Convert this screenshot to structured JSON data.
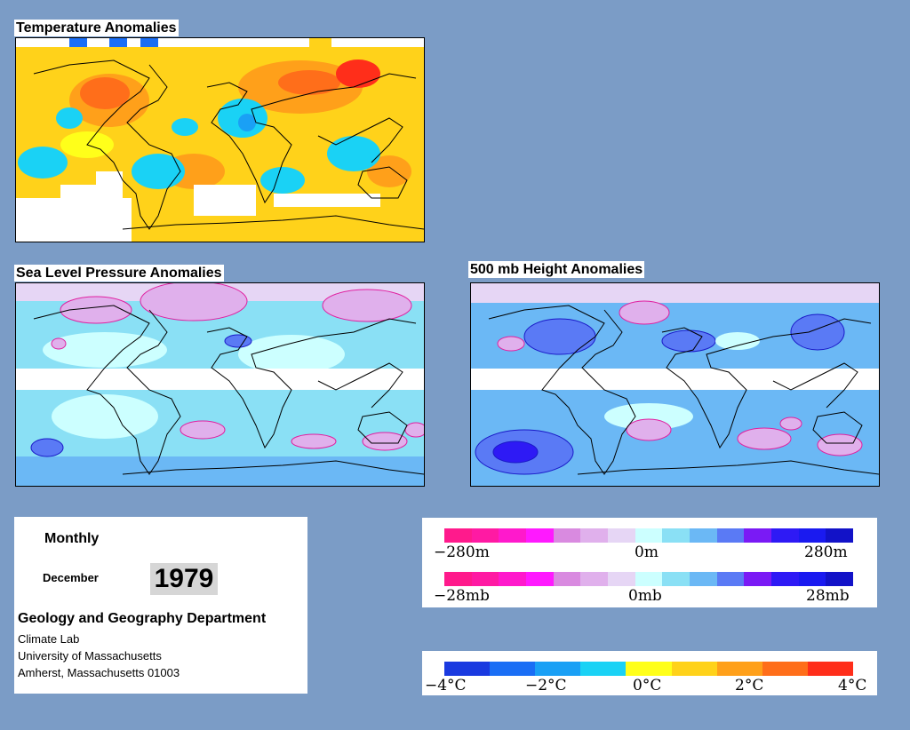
{
  "titles": {
    "temperature": "Temperature Anomalies",
    "slp": "Sea Level Pressure Anomalies",
    "height500": "500 mb Height Anomalies"
  },
  "info": {
    "period": "Monthly",
    "month": "December",
    "year": "1979",
    "department": "Geology and Geography Department",
    "lab": "Climate Lab",
    "university": "University of Massachusetts",
    "address": "Amherst, Massachusetts 01003"
  },
  "legends": {
    "height": {
      "min": "−280m",
      "mid": "0m",
      "max": "280m"
    },
    "pressure": {
      "min": "−28mb",
      "mid": "0mb",
      "max": "28mb"
    },
    "temperature": {
      "t1": "−4°C",
      "t2": "−2°C",
      "t3": "0°C",
      "t4": "2°C",
      "t5": "4°C"
    }
  },
  "colors": {
    "page_background": "#7b9cc6",
    "anomaly_scale": [
      "#ff1a8c",
      "#ff1aa3",
      "#ff19cc",
      "#ff19ff",
      "#d98ae0",
      "#e0b0ec",
      "#e6d6f5",
      "#ccffff",
      "#8ae0f5",
      "#6bb8f5",
      "#5a7af5",
      "#7a1af5",
      "#2e1af5",
      "#1a1af0",
      "#1212c8"
    ],
    "temperature_scale": [
      "#1a3ae0",
      "#1a6ef5",
      "#1aa0f5",
      "#1ad2f5",
      "#ffff1a",
      "#ffd21a",
      "#ffa01a",
      "#ff6e1a",
      "#ff2e1a"
    ]
  }
}
